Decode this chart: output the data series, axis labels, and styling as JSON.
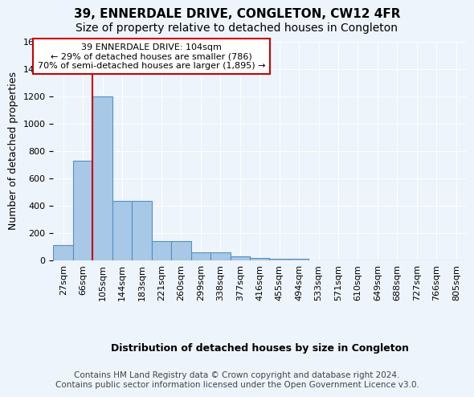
{
  "title": "39, ENNERDALE DRIVE, CONGLETON, CW12 4FR",
  "subtitle": "Size of property relative to detached houses in Congleton",
  "xlabel": "Distribution of detached houses by size in Congleton",
  "ylabel": "Number of detached properties",
  "footer_line1": "Contains HM Land Registry data © Crown copyright and database right 2024.",
  "footer_line2": "Contains public sector information licensed under the Open Government Licence v3.0.",
  "annotation_line1": "39 ENNERDALE DRIVE: 104sqm",
  "annotation_line2": "← 29% of detached houses are smaller (786)",
  "annotation_line3": "70% of semi-detached houses are larger (1,895) →",
  "bin_labels": [
    "27sqm",
    "66sqm",
    "105sqm",
    "144sqm",
    "183sqm",
    "221sqm",
    "260sqm",
    "299sqm",
    "338sqm",
    "377sqm",
    "416sqm",
    "455sqm",
    "494sqm",
    "533sqm",
    "571sqm",
    "610sqm",
    "649sqm",
    "688sqm",
    "727sqm",
    "766sqm",
    "805sqm"
  ],
  "bar_values": [
    110,
    730,
    1200,
    435,
    435,
    145,
    145,
    60,
    60,
    30,
    20,
    15,
    15,
    0,
    0,
    0,
    0,
    0,
    0,
    0,
    0
  ],
  "bar_color": "#a8c8e8",
  "bar_edge_color": "#5590c0",
  "background_color": "#eef4fb",
  "grid_color": "#ffffff",
  "red_line_index": 2,
  "ylim": [
    0,
    1600
  ],
  "yticks": [
    0,
    200,
    400,
    600,
    800,
    1000,
    1200,
    1400,
    1600
  ],
  "annotation_box_color": "#ffffff",
  "annotation_box_edge_color": "#cc0000",
  "red_line_color": "#cc0000",
  "title_fontsize": 11,
  "subtitle_fontsize": 10,
  "axis_label_fontsize": 9,
  "tick_fontsize": 8,
  "footer_fontsize": 7.5,
  "annotation_fontsize": 8
}
